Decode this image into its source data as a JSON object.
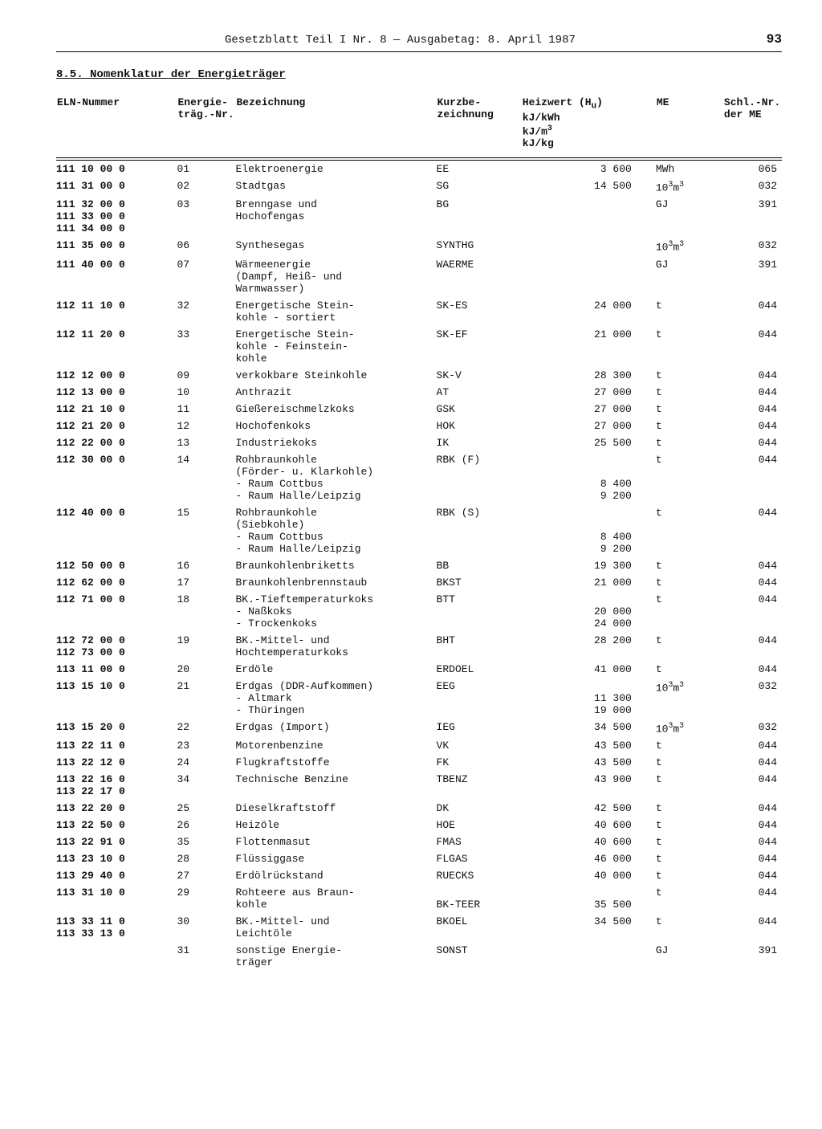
{
  "header": {
    "title": "Gesetzblatt Teil I Nr. 8 — Ausgabetag: 8. April 1987",
    "page": "93"
  },
  "section": {
    "number": "8.5.",
    "title": "Nomenklatur der Energieträger"
  },
  "columns": {
    "eln": "ELN-Nummer",
    "nr": "Energie-\nträg.-Nr.",
    "bez": "Bezeichnung",
    "kurz": "Kurzbe-\nzeichnung",
    "heiz": "Heizwert (H_u)\nkJ/kWh\nkJ/m³\nkJ/kg",
    "me": "ME",
    "schl": "Schl.-Nr.\nder ME"
  },
  "rows": [
    {
      "eln": "111 10 00 0",
      "nr": "01",
      "bez": "Elektroenergie",
      "kurz": "EE",
      "heiz": "3 600",
      "me": "MWh",
      "schl": "065"
    },
    {
      "eln": "111 31 00 0",
      "nr": "02",
      "bez": "Stadtgas",
      "kurz": "SG",
      "heiz": "14 500",
      "me": "10^3m^3",
      "schl": "032"
    },
    {
      "eln": "111 32 00 0\n111 33 00 0\n111 34 00 0",
      "nr": "03",
      "bez": "Brenngase und\nHochofengas",
      "kurz": "BG",
      "heiz": "",
      "me": "GJ",
      "schl": "391"
    },
    {
      "eln": "111 35 00 0",
      "nr": "06",
      "bez": "Synthesegas",
      "kurz": "SYNTHG",
      "heiz": "",
      "me": "10^3m^3",
      "schl": "032"
    },
    {
      "eln": "111 40 00 0",
      "nr": "07",
      "bez": "Wärmeenergie\n(Dampf, Heiß- und\nWarmwasser)",
      "kurz": "WAERME",
      "heiz": "",
      "me": "GJ",
      "schl": "391"
    },
    {
      "eln": "112 11 10 0",
      "nr": "32",
      "bez": "Energetische Stein-\nkohle - sortiert",
      "kurz": "SK-ES",
      "heiz": "24 000",
      "me": "t",
      "schl": "044"
    },
    {
      "eln": "112 11 20 0",
      "nr": "33",
      "bez": "Energetische Stein-\nkohle - Feinstein-\nkohle",
      "kurz": "SK-EF",
      "heiz": "21 000",
      "me": "t",
      "schl": "044"
    },
    {
      "eln": "112 12 00 0",
      "nr": "09",
      "bez": "verkokbare Steinkohle",
      "kurz": "SK-V",
      "heiz": "28 300",
      "me": "t",
      "schl": "044"
    },
    {
      "eln": "112 13 00 0",
      "nr": "10",
      "bez": "Anthrazit",
      "kurz": "AT",
      "heiz": "27 000",
      "me": "t",
      "schl": "044"
    },
    {
      "eln": "112 21 10 0",
      "nr": "11",
      "bez": "Gießereischmelzkoks",
      "kurz": "GSK",
      "heiz": "27 000",
      "me": "t",
      "schl": "044"
    },
    {
      "eln": "112 21 20 0",
      "nr": "12",
      "bez": "Hochofenkoks",
      "kurz": "HOK",
      "heiz": "27 000",
      "me": "t",
      "schl": "044"
    },
    {
      "eln": "112 22 00 0",
      "nr": "13",
      "bez": "Industriekoks",
      "kurz": "IK",
      "heiz": "25 500",
      "me": "t",
      "schl": "044"
    },
    {
      "eln": "112 30 00 0",
      "nr": "14",
      "bez": "Rohbraunkohle\n(Förder- u. Klarkohle)\n- Raum Cottbus\n- Raum Halle/Leipzig",
      "kurz": "RBK (F)",
      "heiz": "\n\n8 400\n9 200",
      "me": "t",
      "schl": "044"
    },
    {
      "eln": "112 40 00 0",
      "nr": "15",
      "bez": "Rohbraunkohle\n(Siebkohle)\n- Raum Cottbus\n- Raum Halle/Leipzig",
      "kurz": "RBK (S)",
      "heiz": "\n\n8 400\n9 200",
      "me": "t",
      "schl": "044"
    },
    {
      "eln": "112 50 00 0",
      "nr": "16",
      "bez": "Braunkohlenbriketts",
      "kurz": "BB",
      "heiz": "19 300",
      "me": "t",
      "schl": "044"
    },
    {
      "eln": "112 62 00 0",
      "nr": "17",
      "bez": "Braunkohlenbrennstaub",
      "kurz": "BKST",
      "heiz": "21 000",
      "me": "t",
      "schl": "044"
    },
    {
      "eln": "112 71 00 0",
      "nr": "18",
      "bez": "BK.-Tieftemperaturkoks\n- Naßkoks\n- Trockenkoks",
      "kurz": "BTT",
      "heiz": "\n20 000\n24 000",
      "me": "t",
      "schl": "044"
    },
    {
      "eln": "112 72 00 0\n112 73 00 0",
      "nr": "19",
      "bez": "BK.-Mittel- und\nHochtemperaturkoks",
      "kurz": "BHT",
      "heiz": "28 200",
      "me": "t",
      "schl": "044"
    },
    {
      "eln": "113 11 00 0",
      "nr": "20",
      "bez": "Erdöle",
      "kurz": "ERDOEL",
      "heiz": "41 000",
      "me": "t",
      "schl": "044"
    },
    {
      "eln": "113 15 10 0",
      "nr": "21",
      "bez": "Erdgas (DDR-Aufkommen)\n- Altmark\n- Thüringen",
      "kurz": "EEG",
      "heiz": "\n11 300\n19 000",
      "me": "10^3m^3",
      "schl": "032"
    },
    {
      "eln": "113 15 20 0",
      "nr": "22",
      "bez": "Erdgas (Import)",
      "kurz": "IEG",
      "heiz": "34 500",
      "me": "10^3m^3",
      "schl": "032"
    },
    {
      "eln": "113 22 11 0",
      "nr": "23",
      "bez": "Motorenbenzine",
      "kurz": "VK",
      "heiz": "43 500",
      "me": "t",
      "schl": "044"
    },
    {
      "eln": "113 22 12 0",
      "nr": "24",
      "bez": "Flugkraftstoffe",
      "kurz": "FK",
      "heiz": "43 500",
      "me": "t",
      "schl": "044"
    },
    {
      "eln": "113 22 16 0\n113 22 17 0",
      "nr": "34",
      "bez": "Technische Benzine",
      "kurz": "TBENZ",
      "heiz": "43 900",
      "me": "t",
      "schl": "044"
    },
    {
      "eln": "113 22 20 0",
      "nr": "25",
      "bez": "Dieselkraftstoff",
      "kurz": "DK",
      "heiz": "42 500",
      "me": "t",
      "schl": "044"
    },
    {
      "eln": "113 22 50 0",
      "nr": "26",
      "bez": "Heizöle",
      "kurz": "HOE",
      "heiz": "40 600",
      "me": "t",
      "schl": "044"
    },
    {
      "eln": "113 22 91 0",
      "nr": "35",
      "bez": "Flottenmasut",
      "kurz": "FMAS",
      "heiz": "40 600",
      "me": "t",
      "schl": "044"
    },
    {
      "eln": "113 23 10 0",
      "nr": "28",
      "bez": "Flüssiggase",
      "kurz": "FLGAS",
      "heiz": "46 000",
      "me": "t",
      "schl": "044"
    },
    {
      "eln": "113 29 40 0",
      "nr": "27",
      "bez": "Erdölrückstand",
      "kurz": "RUECKS",
      "heiz": "40 000",
      "me": "t",
      "schl": "044"
    },
    {
      "eln": "113 31 10 0",
      "nr": "29",
      "bez": "Rohteere aus Braun-\nkohle",
      "kurz": "\nBK-TEER",
      "heiz": "\n35 500",
      "me": "t",
      "schl": "044"
    },
    {
      "eln": "113 33 11 0\n113 33 13 0",
      "nr": "30",
      "bez": "BK.-Mittel- und\nLeichtöle",
      "kurz": "BKOEL",
      "heiz": "34 500",
      "me": "t",
      "schl": "044"
    },
    {
      "eln": "",
      "nr": "31",
      "bez": "sonstige Energie-\nträger",
      "kurz": "SONST",
      "heiz": "",
      "me": "GJ",
      "schl": "391"
    }
  ]
}
